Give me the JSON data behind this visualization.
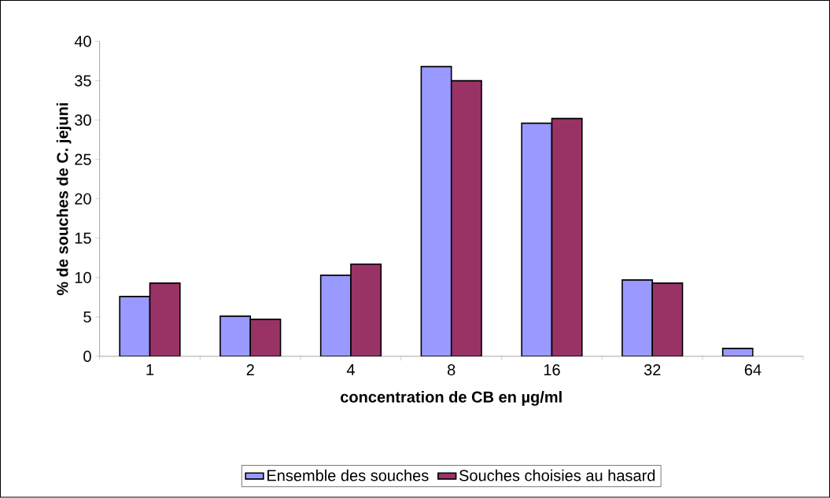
{
  "chart_data": {
    "type": "bar",
    "xlabel": "concentration de CB en µg/ml",
    "ylabel": "% de souches de C. jejuni",
    "categories": [
      "1",
      "2",
      "4",
      "8",
      "16",
      "32",
      "64"
    ],
    "series": [
      {
        "name": "Ensemble des souches",
        "color": "#9999ff",
        "values": [
          7.6,
          5.1,
          10.3,
          36.8,
          29.6,
          9.7,
          1.0
        ]
      },
      {
        "name": "Souches choisies au hasard",
        "color": "#993366",
        "values": [
          9.3,
          4.7,
          11.7,
          35.0,
          30.2,
          9.3,
          null
        ]
      }
    ],
    "ylim": [
      0,
      40
    ],
    "yticks": [
      0,
      5,
      10,
      15,
      20,
      25,
      30,
      35,
      40
    ],
    "grid": false,
    "legend": "bottom"
  }
}
